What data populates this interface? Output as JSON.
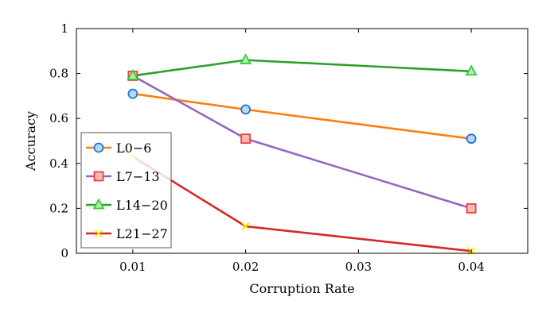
{
  "chart_data": {
    "type": "line",
    "title": "",
    "xlabel": "Corruption Rate",
    "ylabel": "Accuracy",
    "xlim": [
      0.005,
      0.045
    ],
    "ylim": [
      0,
      1
    ],
    "xticks": [
      "0.01",
      "0.02",
      "0.03",
      "0.04"
    ],
    "yticks": [
      "0",
      "0.2",
      "0.4",
      "0.6",
      "0.8",
      "1"
    ],
    "grid": false,
    "legend_placement": "bottom-left",
    "x": [
      0.01,
      0.02,
      0.04
    ],
    "series": [
      {
        "name": "L0−6",
        "values": [
          0.71,
          0.64,
          0.51
        ],
        "line_color": "#ff7f0e",
        "marker": "circle",
        "marker_fill": "#b9d7f2",
        "marker_edge": "#1f77d4"
      },
      {
        "name": "L7−13",
        "values": [
          0.79,
          0.51,
          0.2
        ],
        "line_color": "#9467bd",
        "marker": "square",
        "marker_fill": "#f8b9b9",
        "marker_edge": "#f03c3c"
      },
      {
        "name": "L14−20",
        "values": [
          0.79,
          0.86,
          0.81
        ],
        "line_color": "#2ca02c",
        "marker": "triangle",
        "marker_fill": "#b5ecb5",
        "marker_edge": "#33cc33"
      },
      {
        "name": "L21−27",
        "values": [
          0.43,
          0.12,
          0.01
        ],
        "line_color": "#d62728",
        "marker": "x",
        "marker_fill": "#ffe600",
        "marker_edge": "#ffe600"
      }
    ]
  }
}
